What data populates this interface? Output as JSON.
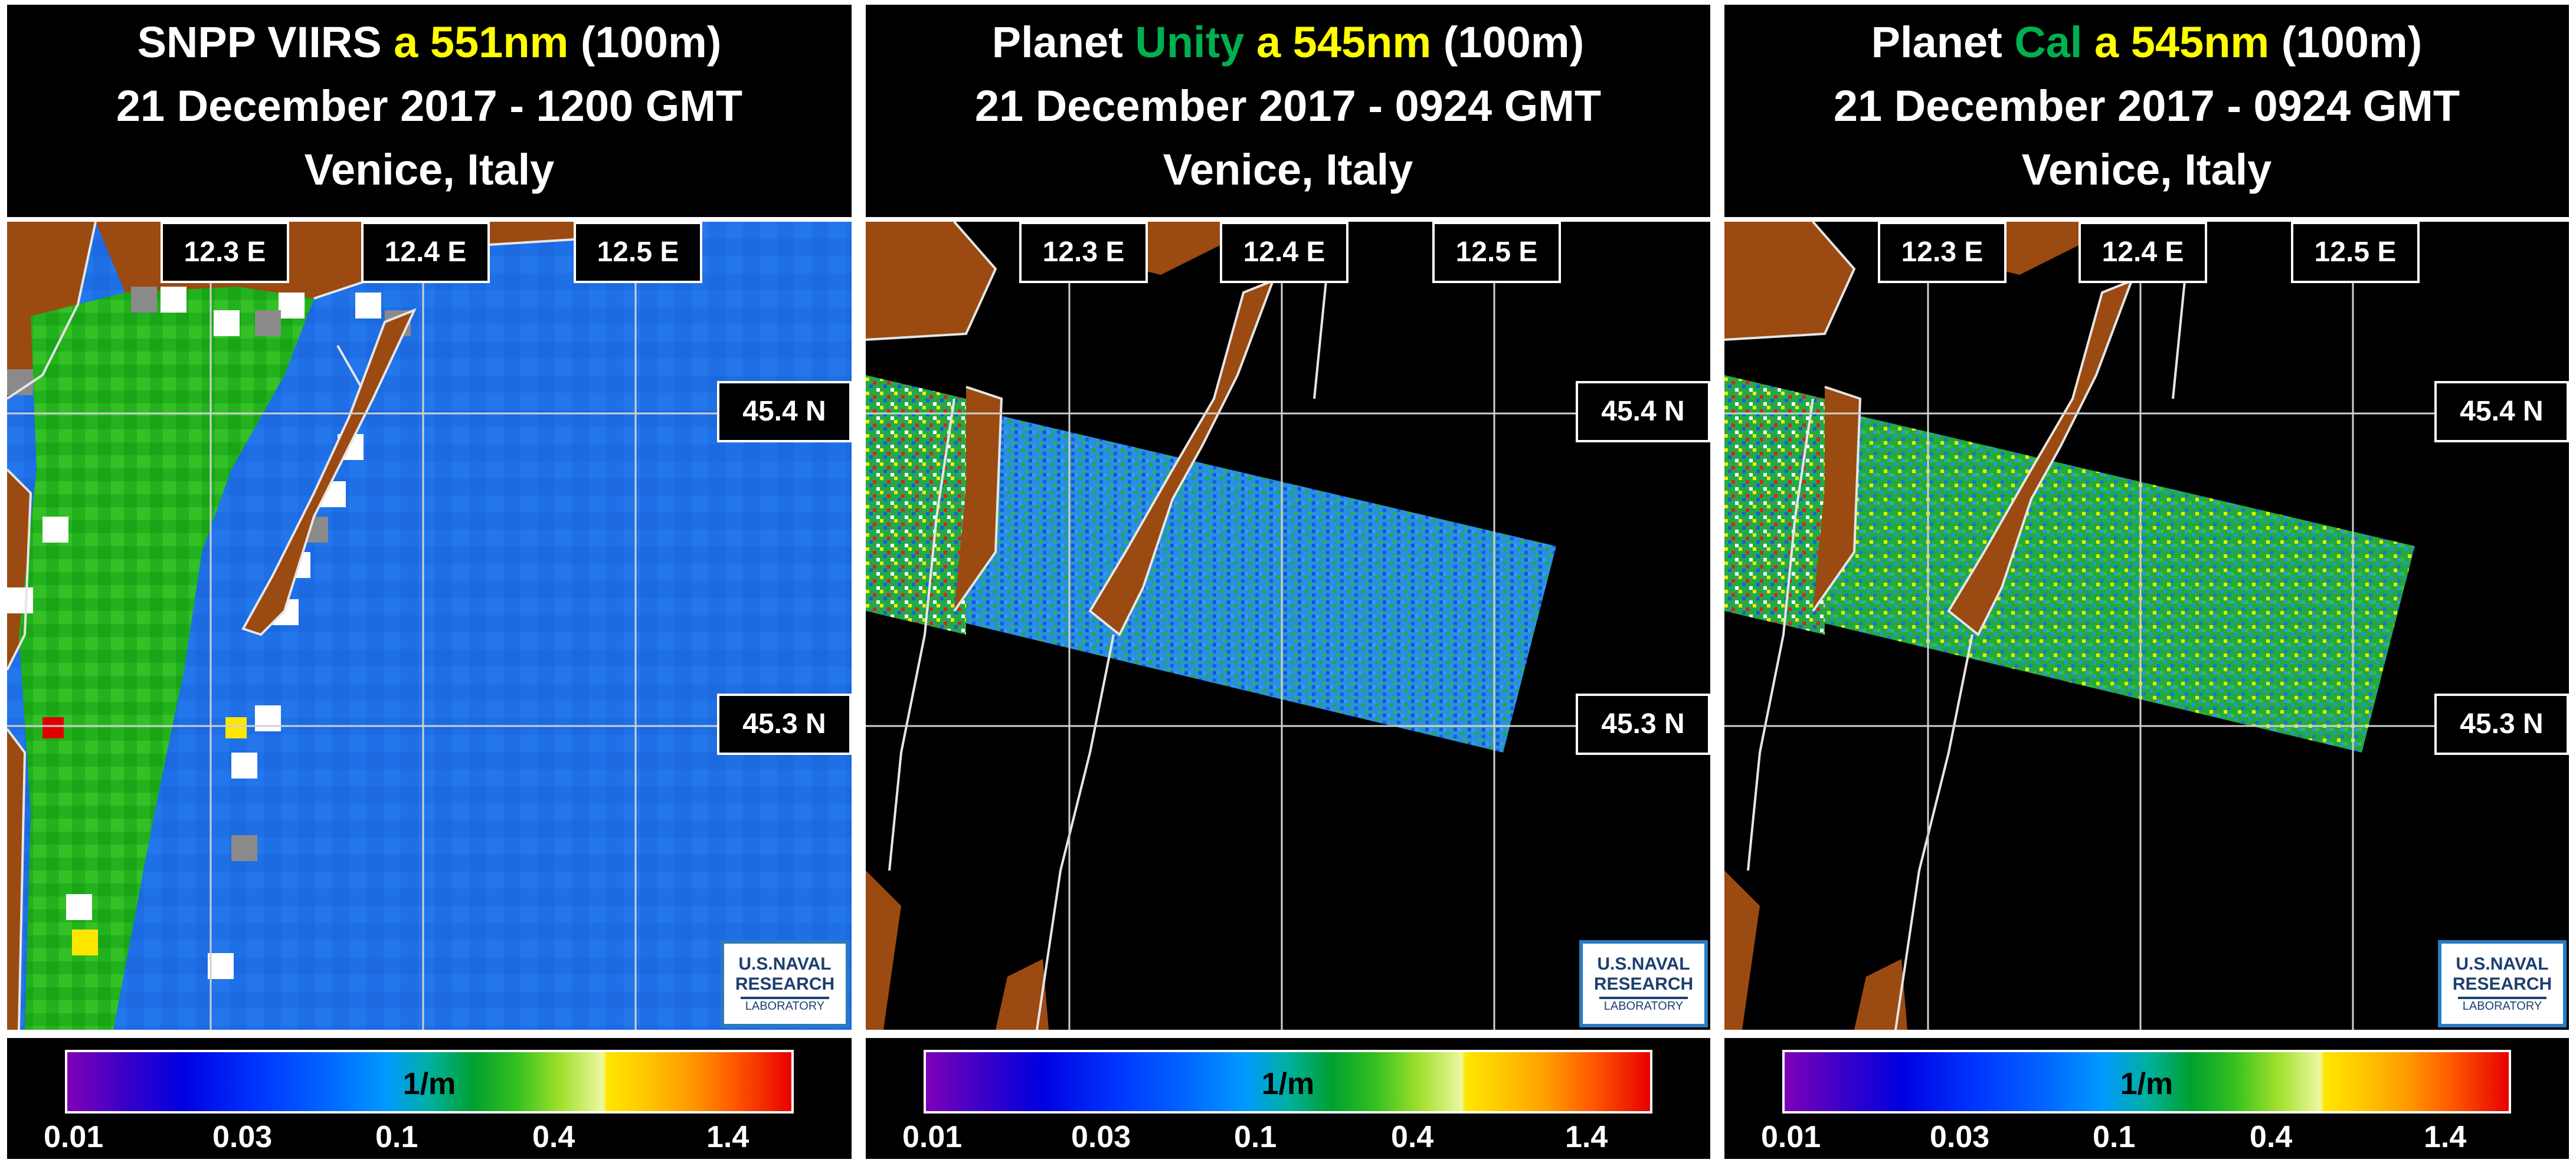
{
  "panels": [
    {
      "title": {
        "line1": {
          "a": "SNPP VIIRS ",
          "b": "a 551nm",
          "c": " (100m)"
        },
        "line2": "21 December 2017 - 1200 GMT",
        "line3": "Venice, Italy"
      },
      "lon_labels": [
        "12.3 E",
        "12.4 E",
        "12.5 E"
      ],
      "lat_labels": [
        "45.4 N",
        "45.3 N"
      ],
      "logo": {
        "l1": "U.S.NAVAL",
        "l2": "RESEARCH",
        "l3": "LABORATORY"
      },
      "colorbar": {
        "unit": "1/m",
        "ticks": [
          "0.01",
          "0.03",
          "0.1",
          "0.4",
          "1.4"
        ]
      }
    },
    {
      "title": {
        "line1": {
          "a": "Planet ",
          "g": "Unity",
          "b": " a 545nm",
          "c": " (100m)"
        },
        "line2": "21 December 2017 - 0924 GMT",
        "line3": "Venice, Italy"
      },
      "lon_labels": [
        "12.3 E",
        "12.4 E",
        "12.5 E"
      ],
      "lat_labels": [
        "45.4 N",
        "45.3 N"
      ],
      "logo": {
        "l1": "U.S.NAVAL",
        "l2": "RESEARCH",
        "l3": "LABORATORY"
      },
      "colorbar": {
        "unit": "1/m",
        "ticks": [
          "0.01",
          "0.03",
          "0.1",
          "0.4",
          "1.4"
        ]
      }
    },
    {
      "title": {
        "line1": {
          "a": "Planet ",
          "g": "Cal",
          "b": " a 545nm",
          "c": " (100m)"
        },
        "line2": "21 December 2017 - 0924 GMT",
        "line3": "Venice, Italy"
      },
      "lon_labels": [
        "12.3 E",
        "12.4 E",
        "12.5 E"
      ],
      "lat_labels": [
        "45.4 N",
        "45.3 N"
      ],
      "logo": {
        "l1": "U.S.NAVAL",
        "l2": "RESEARCH",
        "l3": "LABORATORY"
      },
      "colorbar": {
        "unit": "1/m",
        "ticks": [
          "0.01",
          "0.03",
          "0.1",
          "0.4",
          "1.4"
        ]
      }
    }
  ],
  "colors": {
    "land": "#9b4a12",
    "water_viirs": "#1f6fe6",
    "nearshore_green": "#22b21e",
    "swath": "#2b8fe0",
    "grid": "#d0d0d0",
    "coast": "#e6e6e6",
    "title_yellow": "#ffff00",
    "title_green": "#00b050"
  }
}
